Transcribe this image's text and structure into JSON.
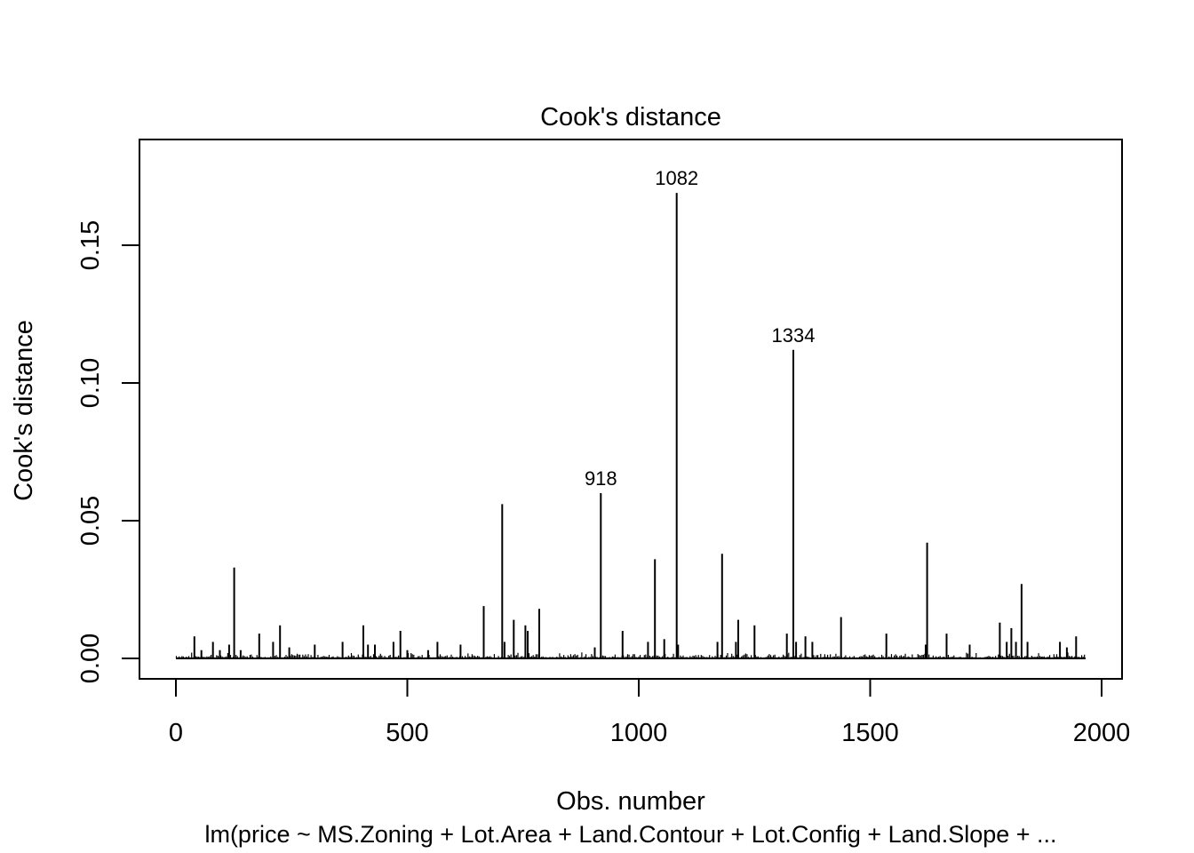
{
  "chart_data": {
    "type": "bar",
    "title": "Cook's distance",
    "xlabel": "Obs. number",
    "ylabel": "Cook's distance",
    "subtitle": "lm(price ~ MS.Zoning + Lot.Area + Land.Contour + Lot.Config + Land.Slope +  ...",
    "xlim": [
      1,
      1964
    ],
    "ylim": [
      0,
      0.18
    ],
    "x_ticks": [
      0,
      500,
      1000,
      1500,
      2000
    ],
    "x_tick_labels": [
      "0",
      "500",
      "1000",
      "1500",
      "2000"
    ],
    "y_ticks": [
      0,
      0.05,
      0.1,
      0.15
    ],
    "y_tick_labels": [
      "0.00",
      "0.05",
      "0.10",
      "0.15"
    ],
    "grid": false,
    "legend": "none",
    "labeled_points": [
      {
        "obs": 918,
        "label": "918",
        "value": 0.06
      },
      {
        "obs": 1082,
        "label": "1082",
        "value": 0.169
      },
      {
        "obs": 1334,
        "label": "1334",
        "value": 0.112
      }
    ],
    "series": [
      {
        "x": [
          40,
          55,
          80,
          95,
          115,
          126,
          140,
          180,
          210,
          225,
          245,
          300,
          360,
          405,
          415,
          430,
          470,
          485,
          500,
          545,
          565,
          615,
          665,
          705,
          710,
          730,
          755,
          760,
          785,
          905,
          918,
          965,
          1020,
          1035,
          1055,
          1082,
          1085,
          1170,
          1180,
          1210,
          1215,
          1250,
          1320,
          1334,
          1340,
          1360,
          1375,
          1437,
          1535,
          1620,
          1623,
          1665,
          1715,
          1780,
          1795,
          1805,
          1815,
          1827,
          1840,
          1910,
          1925,
          1945
        ],
        "values": [
          0.008,
          0.003,
          0.006,
          0.003,
          0.005,
          0.033,
          0.003,
          0.009,
          0.006,
          0.012,
          0.004,
          0.005,
          0.006,
          0.012,
          0.005,
          0.005,
          0.006,
          0.01,
          0.003,
          0.003,
          0.006,
          0.005,
          0.019,
          0.056,
          0.006,
          0.014,
          0.012,
          0.01,
          0.018,
          0.004,
          0.06,
          0.01,
          0.006,
          0.036,
          0.007,
          0.169,
          0.005,
          0.006,
          0.038,
          0.006,
          0.014,
          0.012,
          0.009,
          0.112,
          0.006,
          0.008,
          0.006,
          0.015,
          0.009,
          0.005,
          0.042,
          0.009,
          0.005,
          0.013,
          0.006,
          0.011,
          0.006,
          0.027,
          0.006,
          0.006,
          0.004,
          0.008
        ]
      }
    ]
  }
}
